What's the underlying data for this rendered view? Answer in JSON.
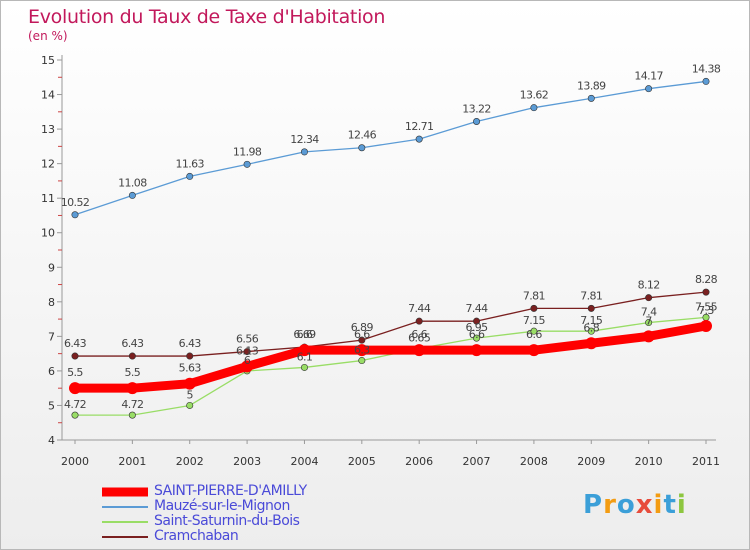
{
  "chart_data": {
    "type": "line",
    "title": "Evolution du Taux de Taxe d'Habitation",
    "subtitle": "(en %)",
    "x": [
      "2000",
      "2001",
      "2002",
      "2003",
      "2004",
      "2005",
      "2006",
      "2007",
      "2008",
      "2009",
      "2010",
      "2011"
    ],
    "ylim": [
      4,
      15
    ],
    "yticks": [
      "4",
      "5",
      "6",
      "7",
      "8",
      "9",
      "10",
      "11",
      "12",
      "13",
      "14",
      "15"
    ],
    "grid": false,
    "legend_position": "bottom-left",
    "series": [
      {
        "name": "SAINT-PIERRE-D'AMILLY",
        "color": "#ff0000",
        "values": [
          5.5,
          5.5,
          5.63,
          6.13,
          6.6,
          6.6,
          6.6,
          6.6,
          6.6,
          6.8,
          7.0,
          7.3
        ],
        "labels": [
          "5.5",
          "5.5",
          "5.63",
          "6.13",
          "6.6",
          "6.6",
          "6.6",
          "6.6",
          "6.6",
          "6.8",
          "7",
          "7.3"
        ]
      },
      {
        "name": "Mauzé-sur-le-Mignon",
        "color": "#5b9bd5",
        "values": [
          10.52,
          11.08,
          11.63,
          11.98,
          12.34,
          12.46,
          12.71,
          13.22,
          13.62,
          13.89,
          14.17,
          14.38
        ],
        "labels": [
          "10.52",
          "11.08",
          "11.63",
          "11.98",
          "12.34",
          "12.46",
          "12.71",
          "13.22",
          "13.62",
          "13.89",
          "14.17",
          "14.38"
        ]
      },
      {
        "name": "Saint-Saturnin-du-Bois",
        "color": "#99dd66",
        "values": [
          4.72,
          4.72,
          5.0,
          6.0,
          6.1,
          6.3,
          6.65,
          6.95,
          7.15,
          7.15,
          7.4,
          7.55
        ],
        "labels": [
          "4.72",
          "4.72",
          "5",
          "6",
          "6.1",
          "6.3",
          "6.65",
          "6.95",
          "7.15",
          "7.15",
          "7.4",
          "7.55"
        ]
      },
      {
        "name": "Cramchaban",
        "color": "#7a2020",
        "values": [
          6.43,
          6.43,
          6.43,
          6.56,
          6.69,
          6.89,
          7.44,
          7.44,
          7.81,
          7.81,
          8.12,
          8.28
        ],
        "labels": [
          "6.43",
          "6.43",
          "6.43",
          "6.56",
          "6.69",
          "6.89",
          "7.44",
          "7.44",
          "7.81",
          "7.81",
          "8.12",
          "8.28"
        ]
      }
    ]
  },
  "legend": {
    "items": [
      "SAINT-PIERRE-D'AMILLY",
      "Mauzé-sur-le-Mignon",
      "Saint-Saturnin-du-Bois",
      "Cramchaban"
    ]
  },
  "logo": {
    "letters": [
      "P",
      "r",
      "o",
      "x",
      "i",
      "t",
      "i"
    ],
    "colors": [
      "#3b9fd8",
      "#f39c12",
      "#3b9fd8",
      "#e74c3c",
      "#f39c12",
      "#3b9fd8",
      "#8dc63f"
    ]
  }
}
